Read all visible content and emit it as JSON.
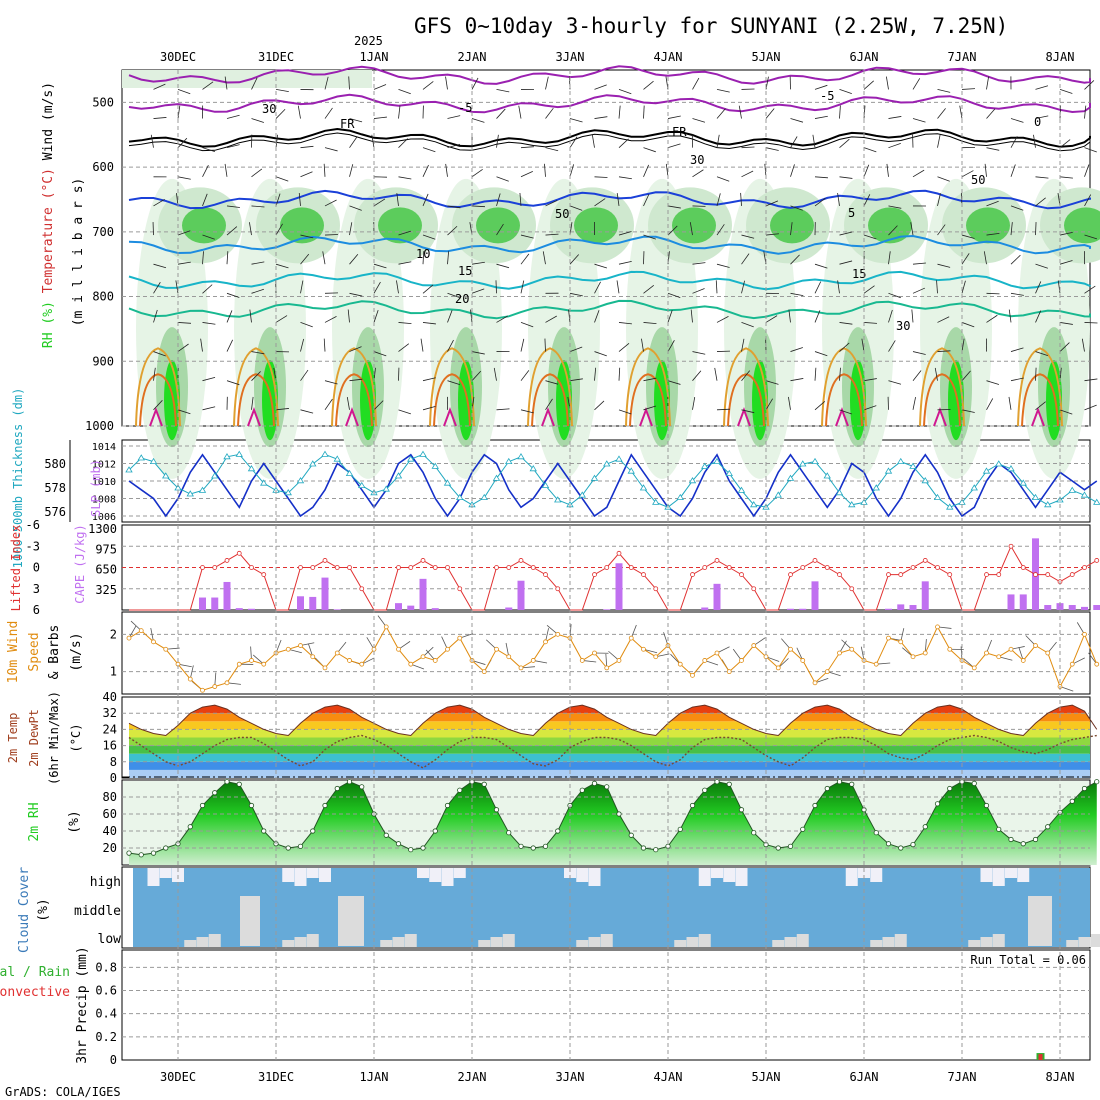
{
  "title": "GFS 0~10day 3-hourly for SUNYANI (2.25W, 7.25N)",
  "year_label": "2025",
  "credit": "GrADS: COLA/IGES",
  "dates": [
    "30DEC",
    "31DEC",
    "1JAN",
    "2JAN",
    "3JAN",
    "4JAN",
    "5JAN",
    "6JAN",
    "7JAN",
    "8JAN"
  ],
  "colors": {
    "rh_green": "#22cc22",
    "temp_red": "#d03030",
    "temp_orange": "#e08000",
    "slp_blue": "#1530c8",
    "thickness_cyan": "#20a8c0",
    "cape_purple": "#c070f0",
    "lifted_red": "#e03030",
    "wind_orange": "#e08c10",
    "cloud_blue": "#66aad8",
    "precip_green": "#30b030"
  },
  "chart_data": [
    {
      "panel": "upper-air",
      "type": "heatmap",
      "ylabel_parts": [
        "RH (%)",
        "Temperature (°C)",
        "Wind (m/s)"
      ],
      "ylabel2": "(m i l l i b a r s)",
      "y_ticks": [
        500,
        600,
        700,
        800,
        900,
        1000
      ],
      "ylim": [
        1000,
        450
      ],
      "contour_labels": [
        "-5",
        "FR",
        "5",
        "10",
        "15",
        "20",
        "30",
        "50",
        "0"
      ]
    },
    {
      "panel": "slp-thickness",
      "type": "line",
      "ylabel_left": "1000-500mb Thickness (dm)",
      "ylabel_right": "SLP (mb)",
      "left_ticks": [
        576,
        578,
        580
      ],
      "right_ticks": [
        1006,
        1008,
        1010,
        1012,
        1014
      ],
      "series": [
        {
          "name": "SLP",
          "values": [
            1010,
            1009,
            1008,
            1006,
            1008,
            1011,
            1013,
            1011,
            1009,
            1007,
            1010,
            1012,
            1010,
            1008,
            1006,
            1007,
            1009,
            1012,
            1011,
            1009,
            1007,
            1009,
            1012,
            1013,
            1011,
            1008,
            1006,
            1008,
            1011,
            1013,
            1012,
            1009,
            1007,
            1008,
            1010,
            1012,
            1010,
            1008,
            1006,
            1007,
            1010,
            1013,
            1011,
            1009,
            1007,
            1006,
            1008,
            1011,
            1013,
            1010,
            1008,
            1006,
            1008,
            1011,
            1013,
            1011,
            1009,
            1007,
            1009,
            1012,
            1011,
            1008,
            1006,
            1008,
            1011,
            1013,
            1011,
            1008,
            1006,
            1007,
            1010,
            1012,
            1011,
            1009,
            1007,
            1009,
            1011,
            1010,
            1009,
            1010
          ]
        },
        {
          "name": "Thickness",
          "values": [
            579.5,
            580.5,
            580.2,
            579.0,
            578.0,
            577.5,
            577.8,
            579.0,
            580.6,
            580.8,
            579.6,
            578.4,
            577.8,
            577.6,
            578.6,
            580.0,
            580.8,
            580.4,
            579.2,
            578.2,
            577.6,
            577.9,
            579.0,
            580.4,
            580.8,
            579.8,
            578.4,
            577.2,
            576.6,
            577.2,
            578.8,
            580.2,
            580.6,
            579.6,
            578.2,
            577.0,
            576.6,
            577.4,
            578.8,
            580.0,
            580.4,
            579.4,
            578.0,
            576.8,
            576.4,
            577.2,
            578.6,
            579.8,
            580.2,
            579.2,
            577.8,
            576.6,
            576.4,
            577.4,
            578.8,
            580.0,
            580.2,
            579.0,
            577.6,
            576.6,
            576.8,
            578.0,
            579.4,
            580.2,
            579.8,
            578.6,
            577.2,
            576.4,
            576.8,
            578.0,
            579.4,
            580.0,
            579.6,
            578.4,
            577.2,
            576.6,
            577.0,
            577.8,
            577.4,
            576.8
          ]
        }
      ]
    },
    {
      "panel": "lifted-cape",
      "type": "bar",
      "ylabel_left": "Lifted Index",
      "ylabel_right": "CAPE (J/kg)",
      "left_ticks": [
        "-6",
        "-3",
        "0",
        "3",
        "6"
      ],
      "right_ticks": [
        "325",
        "650",
        "975",
        "1300"
      ],
      "cape_values": [
        0,
        0,
        0,
        0,
        0,
        0,
        200,
        200,
        450,
        30,
        20,
        0,
        0,
        0,
        220,
        210,
        520,
        10,
        0,
        0,
        0,
        0,
        110,
        70,
        500,
        30,
        0,
        0,
        0,
        0,
        0,
        40,
        470,
        0,
        0,
        0,
        0,
        0,
        0,
        10,
        750,
        0,
        0,
        0,
        0,
        0,
        0,
        40,
        420,
        0,
        0,
        0,
        0,
        0,
        20,
        20,
        460,
        0,
        0,
        0,
        0,
        0,
        20,
        90,
        80,
        460,
        0,
        0,
        0,
        0,
        0,
        0,
        250,
        250,
        1150,
        80,
        110,
        80,
        50,
        80,
        280,
        320
      ],
      "lifted_index": [
        6,
        6,
        6,
        6,
        6,
        6,
        0,
        0,
        -1,
        -2,
        0,
        1,
        6,
        6,
        0,
        0,
        -1,
        0,
        0,
        3,
        6,
        6,
        0,
        0,
        -1,
        0,
        0,
        3,
        6,
        6,
        0,
        0,
        -1,
        0,
        1,
        3,
        6,
        6,
        1,
        0,
        -2,
        0,
        1,
        3,
        6,
        6,
        1,
        0,
        -1,
        0,
        1,
        3,
        6,
        6,
        1,
        0,
        -1,
        0,
        1,
        3,
        6,
        6,
        1,
        1,
        0,
        -1,
        0,
        1,
        6,
        6,
        1,
        1,
        -3,
        0,
        1,
        1,
        2,
        1,
        0,
        -1
      ]
    },
    {
      "panel": "wind10m",
      "type": "line",
      "ylabel_parts": [
        "10m Wind",
        "Speed",
        "& Barbs",
        "(m/s)"
      ],
      "ticks": [
        "1",
        "2"
      ],
      "ylim": [
        0.4,
        2.6
      ],
      "values": [
        1.9,
        2.1,
        1.8,
        1.6,
        1.2,
        0.8,
        0.5,
        0.6,
        0.7,
        1.2,
        1.3,
        1.2,
        1.5,
        1.6,
        1.7,
        1.4,
        1.1,
        1.5,
        1.3,
        1.2,
        1.6,
        2.2,
        1.6,
        1.2,
        1.4,
        1.3,
        1.6,
        1.9,
        1.3,
        1.0,
        1.6,
        1.4,
        1.1,
        1.3,
        1.8,
        2.0,
        1.9,
        1.3,
        1.5,
        1.1,
        1.3,
        1.9,
        1.6,
        1.4,
        1.7,
        1.2,
        0.9,
        1.3,
        1.5,
        1.0,
        1.3,
        1.7,
        1.4,
        1.1,
        1.6,
        1.3,
        0.7,
        1.0,
        1.5,
        1.6,
        1.3,
        1.2,
        1.9,
        1.8,
        1.4,
        1.5,
        2.2,
        1.6,
        1.3,
        1.1,
        1.5,
        1.4,
        1.6,
        1.3,
        1.7,
        1.5,
        0.6,
        1.2,
        2.0,
        1.2
      ]
    },
    {
      "panel": "temp2m",
      "type": "area",
      "ylabel_parts": [
        "2m Temp",
        "2m DewPt",
        "(6hr Min/Max)",
        "(°C)"
      ],
      "ticks": [
        "0",
        "8",
        "16",
        "24",
        "32",
        "40"
      ],
      "ylim": [
        0,
        40
      ],
      "temp": [
        27,
        24,
        22,
        21,
        26,
        32,
        35,
        36,
        34,
        30,
        27,
        24,
        22,
        21,
        27,
        32,
        35,
        36,
        34,
        30,
        27,
        24,
        22,
        21,
        27,
        32,
        35,
        36,
        34,
        30,
        27,
        24,
        22,
        21,
        27,
        32,
        35,
        36,
        34,
        30,
        27,
        24,
        22,
        21,
        27,
        32,
        35,
        36,
        34,
        30,
        27,
        24,
        22,
        21,
        27,
        32,
        35,
        36,
        34,
        30,
        27,
        24,
        22,
        21,
        27,
        32,
        35,
        36,
        34,
        30,
        27,
        24,
        22,
        21,
        27,
        32,
        35,
        36,
        33,
        24
      ],
      "dewpoint": [
        20,
        16,
        12,
        8,
        6,
        8,
        12,
        16,
        19,
        20,
        20,
        17,
        13,
        9,
        6,
        8,
        14,
        18,
        20,
        21,
        19,
        16,
        12,
        8,
        5,
        9,
        14,
        18,
        20,
        20,
        19,
        15,
        11,
        7,
        6,
        9,
        15,
        18,
        20,
        20,
        19,
        16,
        12,
        8,
        6,
        9,
        15,
        19,
        20,
        20,
        19,
        15,
        11,
        8,
        6,
        10,
        15,
        19,
        20,
        20,
        19,
        16,
        12,
        10,
        9,
        12,
        16,
        19,
        20,
        21,
        20,
        18,
        15,
        13,
        12,
        14,
        17,
        19,
        20,
        21
      ]
    },
    {
      "panel": "rh2m",
      "type": "area",
      "ylabel_parts": [
        "2m RH",
        "(%)"
      ],
      "ticks": [
        "20",
        "40",
        "60",
        "80"
      ],
      "ylim": [
        0,
        100
      ],
      "values": [
        14,
        12,
        14,
        20,
        25,
        45,
        70,
        85,
        98,
        95,
        70,
        40,
        25,
        20,
        22,
        40,
        70,
        90,
        98,
        92,
        60,
        35,
        25,
        18,
        20,
        40,
        70,
        88,
        98,
        95,
        65,
        38,
        22,
        20,
        22,
        40,
        70,
        88,
        96,
        92,
        60,
        35,
        20,
        18,
        22,
        42,
        70,
        88,
        98,
        95,
        65,
        38,
        24,
        20,
        22,
        42,
        70,
        90,
        98,
        95,
        65,
        38,
        25,
        20,
        24,
        45,
        72,
        90,
        98,
        96,
        70,
        42,
        30,
        25,
        30,
        45,
        62,
        75,
        90,
        98
      ]
    },
    {
      "panel": "cloud",
      "type": "bar",
      "ylabel_parts": [
        "Cloud Cover",
        "(%)"
      ],
      "levels": [
        "high",
        "middle",
        "low"
      ]
    },
    {
      "panel": "precip",
      "type": "bar",
      "ylabel_parts": [
        "Total / Rain",
        "Convective",
        "3hr Precip (mm)"
      ],
      "ticks": [
        "0",
        "0.2",
        "0.4",
        "0.6",
        "0.8"
      ],
      "ylim": [
        0,
        0.95
      ],
      "run_total": "Run Total = 0.06",
      "values": [
        0,
        0,
        0,
        0,
        0,
        0,
        0,
        0,
        0,
        0,
        0,
        0,
        0,
        0,
        0,
        0,
        0,
        0,
        0,
        0,
        0,
        0,
        0,
        0,
        0,
        0,
        0,
        0,
        0,
        0,
        0,
        0,
        0,
        0,
        0,
        0,
        0,
        0,
        0,
        0,
        0,
        0,
        0,
        0,
        0,
        0,
        0,
        0,
        0,
        0,
        0,
        0,
        0,
        0,
        0,
        0,
        0,
        0,
        0,
        0,
        0,
        0,
        0,
        0,
        0,
        0,
        0,
        0,
        0,
        0,
        0,
        0,
        0,
        0,
        0.06,
        0,
        0,
        0,
        0,
        0
      ]
    }
  ]
}
